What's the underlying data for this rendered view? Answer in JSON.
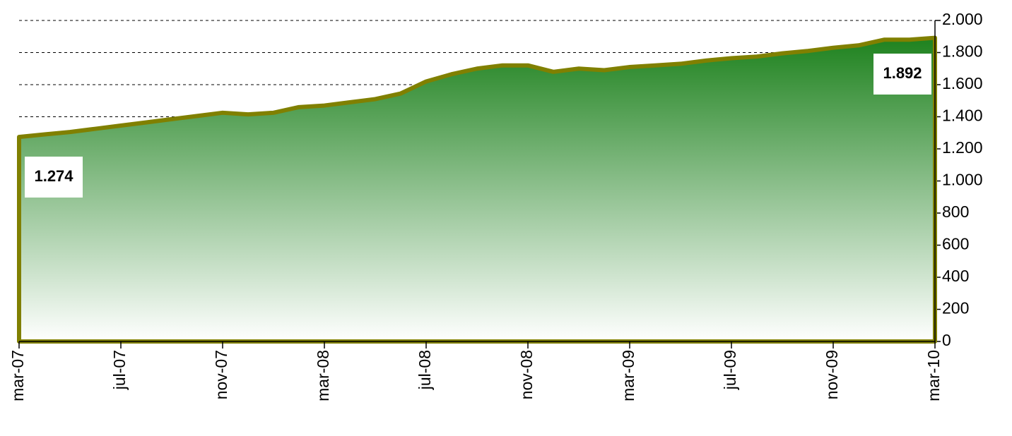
{
  "chart_data": {
    "type": "area",
    "categories": [
      "mar-07",
      null,
      null,
      null,
      "jul-07",
      null,
      null,
      null,
      "nov-07",
      null,
      null,
      null,
      "mar-08",
      null,
      null,
      null,
      "jul-08",
      null,
      null,
      null,
      "nov-08",
      null,
      null,
      null,
      "mar-09",
      null,
      null,
      null,
      "jul-09",
      null,
      null,
      null,
      "nov-09",
      null,
      null,
      null,
      "mar-10"
    ],
    "values": [
      1274,
      1290,
      1305,
      1325,
      1345,
      1365,
      1385,
      1405,
      1425,
      1415,
      1425,
      1460,
      1470,
      1490,
      1510,
      1545,
      1620,
      1665,
      1700,
      1720,
      1720,
      1680,
      1700,
      1690,
      1710,
      1720,
      1730,
      1750,
      1765,
      1775,
      1795,
      1810,
      1830,
      1845,
      1880,
      1880,
      1892
    ],
    "value_labels": [
      "1.274",
      null,
      null,
      null,
      null,
      null,
      null,
      null,
      null,
      null,
      null,
      null,
      null,
      null,
      null,
      null,
      null,
      null,
      null,
      null,
      null,
      null,
      null,
      null,
      null,
      null,
      null,
      null,
      null,
      null,
      null,
      null,
      null,
      null,
      null,
      null,
      "1.892"
    ],
    "color": "#1e821e",
    "line_color": "#808000",
    "ylim": [
      0,
      2000
    ],
    "yticks": [
      0,
      200,
      400,
      600,
      800,
      {
        "value": 1000,
        "label": "1.000"
      },
      {
        "value": 1200,
        "label": "1.200"
      },
      {
        "value": 1400,
        "label": "1.400"
      },
      {
        "value": 1600,
        "label": "1.600"
      },
      {
        "value": 1800,
        "label": "1.800"
      },
      {
        "value": 2000,
        "label": "2.000"
      }
    ],
    "grid": true
  }
}
